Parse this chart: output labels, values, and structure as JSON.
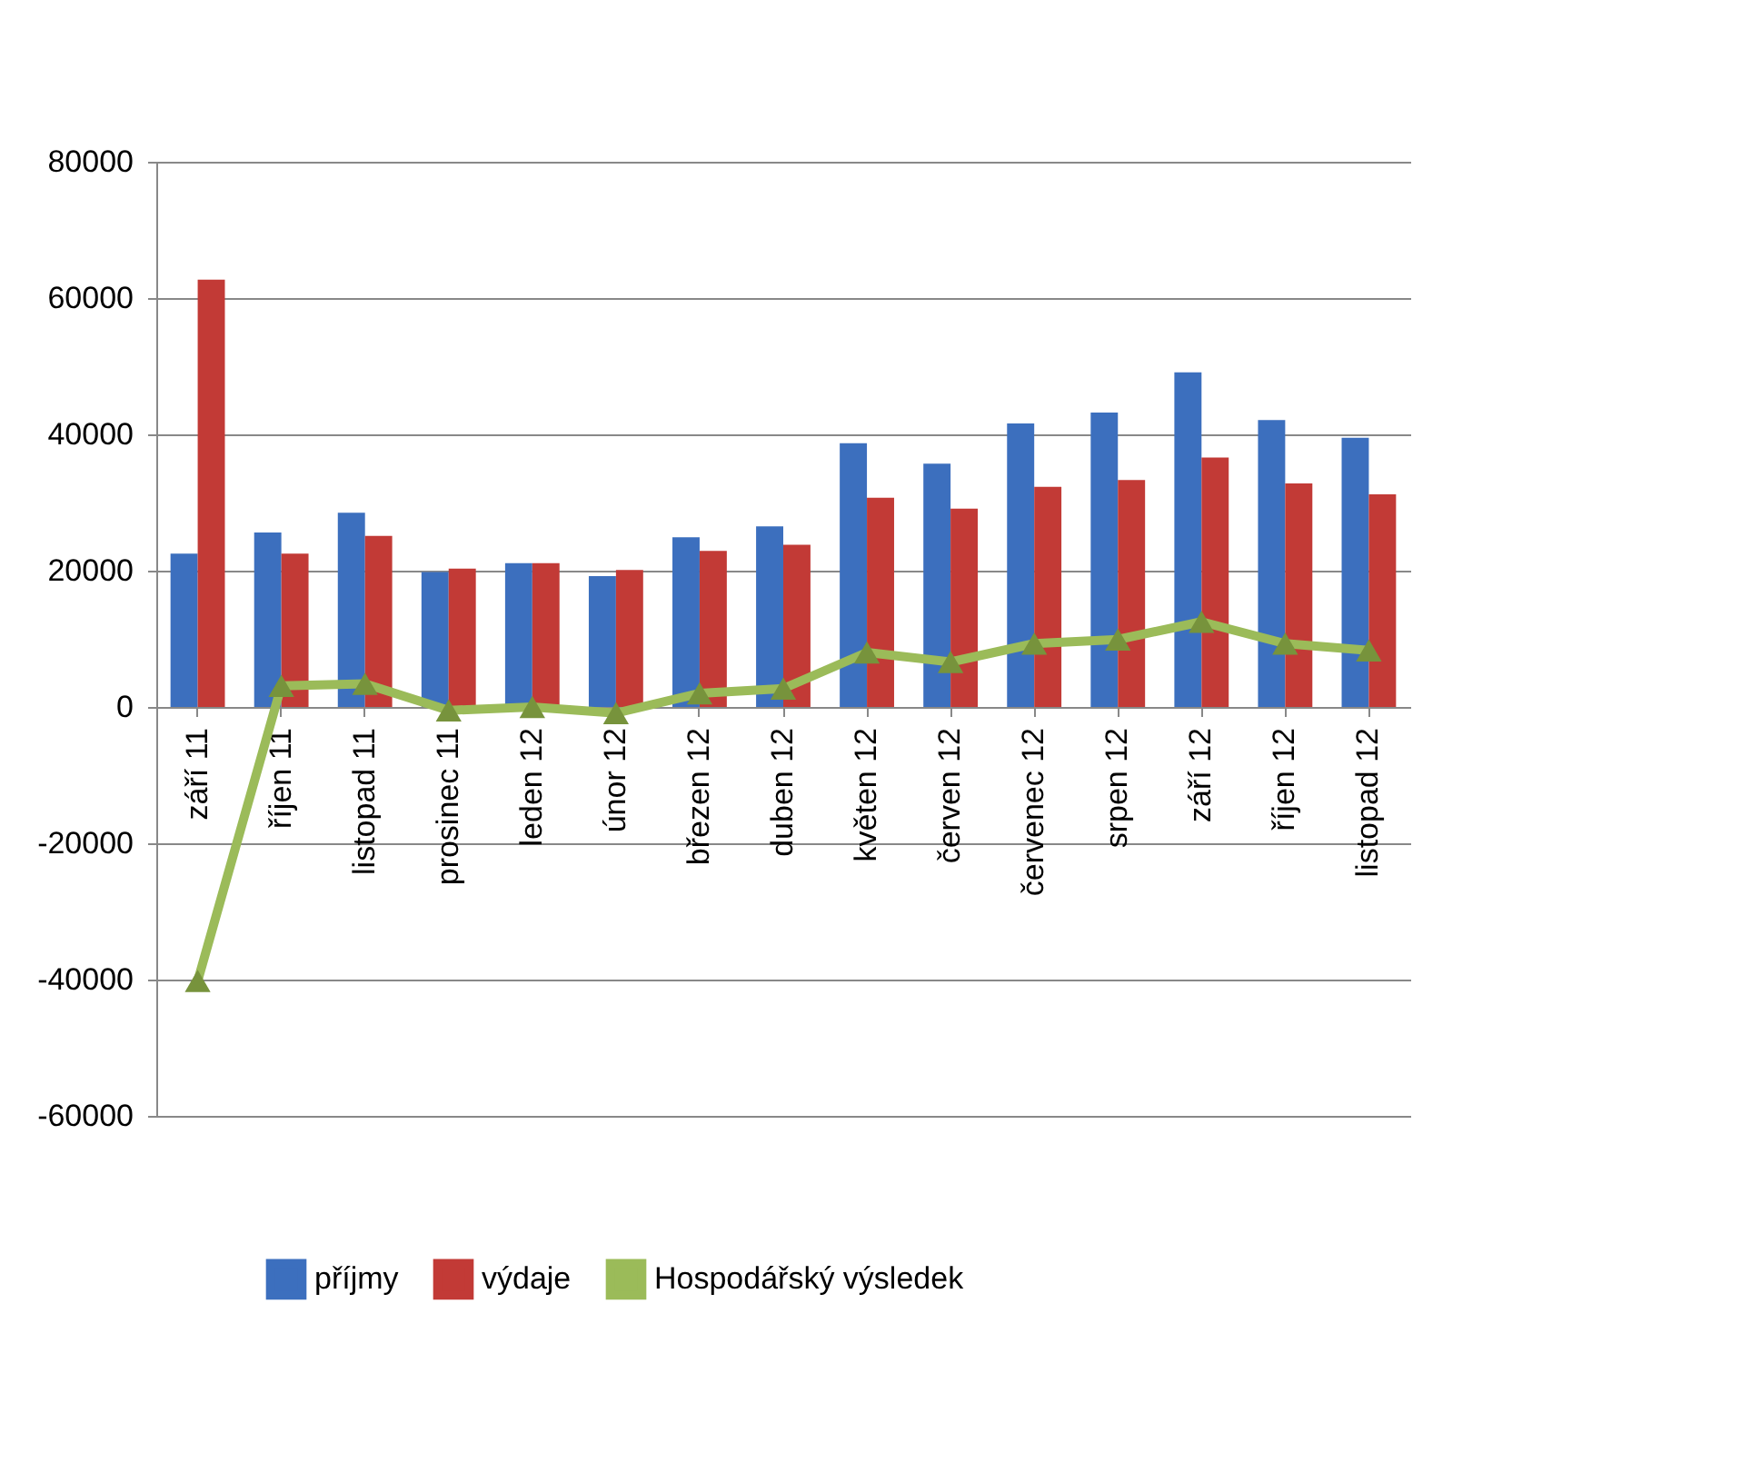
{
  "chart_data": {
    "type": "bar",
    "categories": [
      "září 11",
      "říjen 11",
      "listopad 11",
      "prosinec 11",
      "leden 12",
      "únor 12",
      "březen 12",
      "duben 12",
      "květen 12",
      "červen 12",
      "červenec 12",
      "srpen 12",
      "září 12",
      "říjen 12",
      "listopad 12"
    ],
    "series": [
      {
        "name": "příjmy",
        "color": "#3c6fbe",
        "values": [
          22500,
          25600,
          28500,
          19800,
          21100,
          19200,
          24900,
          26500,
          38700,
          35700,
          41600,
          43200,
          49100,
          42100,
          39500
        ]
      },
      {
        "name": "výdaje",
        "color": "#c23a36",
        "values": [
          62700,
          22500,
          25100,
          20300,
          21100,
          20100,
          22900,
          23800,
          30700,
          29100,
          32300,
          33300,
          36600,
          32800,
          31200
        ]
      },
      {
        "name": "Hospodářský výsledek",
        "type": "line",
        "color": "#9bbb59",
        "marker": "triangle",
        "values": [
          -40200,
          3100,
          3400,
          -500,
          0,
          -900,
          2000,
          2700,
          8000,
          6600,
          9300,
          9900,
          12500,
          9300,
          8300
        ]
      }
    ],
    "ylim": [
      -60000,
      80000
    ],
    "yticks": [
      -60000,
      -40000,
      -20000,
      0,
      20000,
      40000,
      60000,
      80000
    ],
    "grid": "y",
    "legend": "bottom"
  }
}
